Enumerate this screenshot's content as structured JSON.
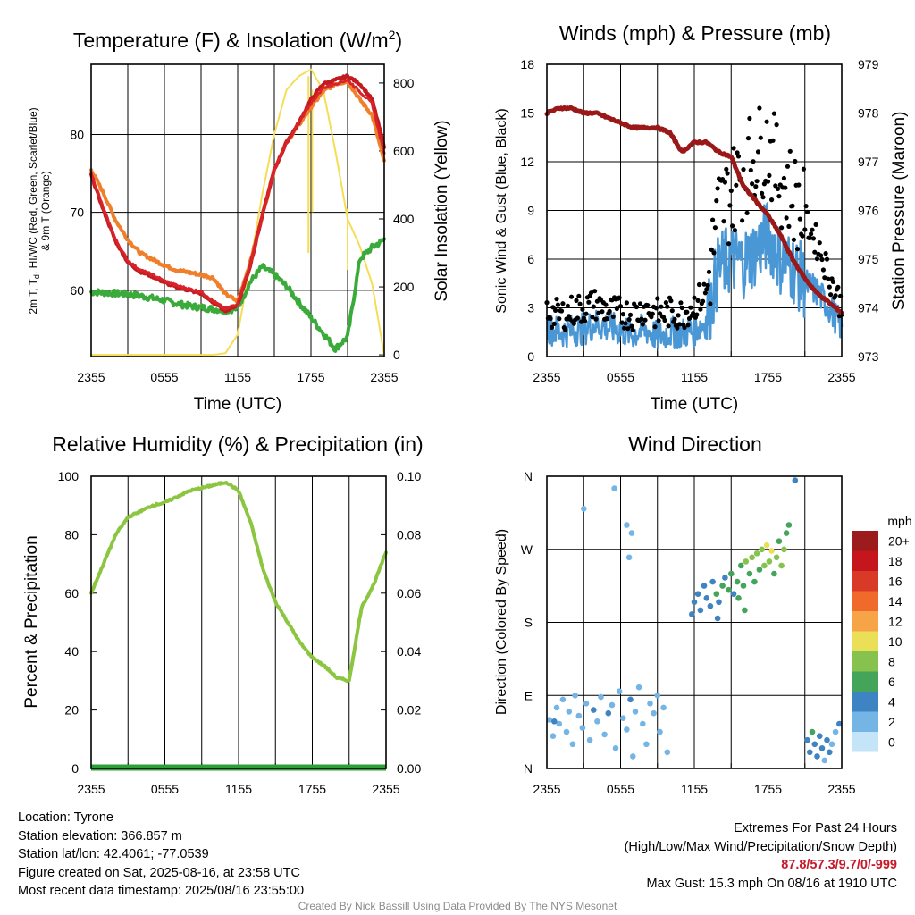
{
  "colors": {
    "temp": "#d9232a",
    "dewpoint": "#3aab3a",
    "hiwc": "#c11b1f",
    "t9m": "#f07f2b",
    "solar": "#f5dd55",
    "rh": "#8cc640",
    "precip": "#2e9e3a",
    "wind": "#4a97d6",
    "gust": "#000000",
    "pressure": "#9b1818"
  },
  "chart_data": [
    {
      "type": "line",
      "title": "Temperature (F) & Insolation (W/m²)",
      "xlabel": "Time (UTC)",
      "ylabel_left": "2m T, Tₐ, HI/WC (Red, Green, Scarlet/Blue) & 9m T (Orange)",
      "ylabel_left_lines": [
        "2m T, T",
        "d",
        ", HI/WC (Red, Green, Scarlet/Blue)",
        "& 9m T (Orange)"
      ],
      "ylabel_right": "Solar Insolation (Yellow)",
      "x_ticks": [
        "2355",
        "0555",
        "1155",
        "1755",
        "2355"
      ],
      "ylim_left": [
        51.5,
        89
      ],
      "yticks_left": [
        60,
        70,
        80
      ],
      "ylim_right": [
        -5,
        855
      ],
      "yticks_right": [
        0,
        200,
        400,
        600,
        800
      ],
      "x_hours": [
        0,
        1,
        2,
        3,
        4,
        5,
        6,
        7,
        8,
        9,
        10,
        11,
        12,
        13,
        14,
        15,
        16,
        17,
        18,
        19,
        20,
        21,
        22,
        23,
        24
      ],
      "series": [
        {
          "name": "2m T",
          "color_key": "temp",
          "axis": "left",
          "values": [
            75.0,
            70.5,
            66.5,
            63.8,
            62.6,
            62.0,
            61.2,
            60.6,
            60.2,
            59.8,
            58.6,
            57.6,
            58.3,
            63.0,
            69.5,
            75.5,
            79.0,
            81.5,
            84.0,
            86.0,
            86.5,
            87.0,
            85.5,
            84.0,
            77.5
          ]
        },
        {
          "name": "HI/WC",
          "color_key": "hiwc",
          "axis": "left",
          "values": [
            74.8,
            70.3,
            66.3,
            63.6,
            62.4,
            61.8,
            61.0,
            60.4,
            60.0,
            59.6,
            58.4,
            57.4,
            58.1,
            63.0,
            69.5,
            75.5,
            79.0,
            81.5,
            84.5,
            86.5,
            87.0,
            87.5,
            86.5,
            84.5,
            78.5
          ]
        },
        {
          "name": "9m T",
          "color_key": "t9m",
          "axis": "left",
          "values": [
            75.5,
            72.5,
            69.0,
            66.5,
            64.8,
            64.0,
            63.2,
            62.6,
            62.3,
            62.0,
            61.6,
            59.5,
            58.6,
            63.5,
            69.5,
            75.5,
            79.0,
            81.2,
            83.5,
            85.5,
            86.5,
            86.8,
            84.5,
            82.5,
            76.5
          ]
        },
        {
          "name": "Dewpoint",
          "color_key": "dewpoint",
          "axis": "left",
          "values": [
            59.8,
            59.7,
            59.6,
            59.5,
            59.3,
            59.0,
            58.7,
            58.3,
            58.0,
            57.8,
            57.6,
            57.4,
            57.7,
            61.0,
            63.0,
            62.0,
            60.5,
            58.5,
            56.5,
            54.5,
            52.5,
            54.0,
            64.0,
            65.5,
            66.5
          ]
        },
        {
          "name": "Solar",
          "color_key": "solar",
          "axis": "right",
          "values": [
            0,
            0,
            0,
            0,
            0,
            0,
            0,
            0,
            0,
            0,
            0,
            5,
            60,
            260,
            470,
            650,
            780,
            820,
            840,
            780,
            600,
            400,
            320,
            210,
            0
          ]
        }
      ]
    },
    {
      "type": "line",
      "title": "Winds (mph) & Pressure (mb)",
      "xlabel": "Time (UTC)",
      "ylabel_left": "Sonic Wind & Gust (Blue, Black)",
      "ylabel_right": "Station Pressure (Maroon)",
      "x_ticks": [
        "2355",
        "0555",
        "1155",
        "1755",
        "2355"
      ],
      "ylim_left": [
        0,
        18
      ],
      "yticks_left": [
        0,
        3,
        6,
        9,
        12,
        15,
        18
      ],
      "ylim_right": [
        973,
        979
      ],
      "yticks_right": [
        973,
        974,
        975,
        976,
        977,
        978,
        979
      ],
      "x_hours": [
        0,
        1,
        2,
        3,
        4,
        5,
        6,
        7,
        8,
        9,
        10,
        11,
        12,
        13,
        14,
        15,
        16,
        17,
        18,
        19,
        20,
        21,
        22,
        23,
        24
      ],
      "series": [
        {
          "name": "Wind",
          "color_key": "wind",
          "axis": "left",
          "values": [
            1.8,
            1.5,
            1.6,
            1.7,
            2.0,
            1.8,
            1.6,
            1.4,
            1.7,
            1.2,
            1.5,
            1.4,
            1.6,
            2.2,
            5.5,
            6.0,
            5.8,
            6.5,
            7.5,
            6.0,
            5.5,
            4.5,
            4.0,
            3.0,
            1.8
          ]
        },
        {
          "name": "Gust",
          "color_key": "gust",
          "axis": "left",
          "values": [
            2.8,
            2.5,
            2.8,
            3.0,
            3.2,
            2.8,
            2.7,
            2.6,
            3.0,
            2.6,
            2.7,
            2.6,
            3.2,
            4.0,
            9.0,
            10.0,
            11.5,
            12.5,
            13.0,
            11.0,
            10.0,
            8.5,
            7.0,
            5.0,
            3.0
          ]
        },
        {
          "name": "Pressure",
          "color_key": "pressure",
          "axis": "right",
          "values": [
            978.0,
            978.1,
            978.1,
            978.0,
            978.0,
            977.9,
            977.8,
            977.7,
            977.7,
            977.7,
            977.6,
            977.2,
            977.4,
            977.4,
            977.2,
            977.1,
            976.5,
            976.2,
            975.9,
            975.5,
            975.0,
            974.6,
            974.3,
            974.1,
            973.9
          ]
        }
      ]
    },
    {
      "type": "line",
      "title": "Relative Humidity (%) & Precipitation (in)",
      "ylabel_left": "Percent & Precipitation",
      "x_ticks": [
        "2355",
        "0555",
        "1155",
        "1755",
        "2355"
      ],
      "ylim_left": [
        0,
        100
      ],
      "yticks_left": [
        0,
        20,
        40,
        60,
        80,
        100
      ],
      "ylim_right": [
        0,
        0.1
      ],
      "yticks_right": [
        "0.00",
        "0.02",
        "0.04",
        "0.06",
        "0.08",
        "0.10"
      ],
      "x_hours": [
        0,
        1,
        2,
        3,
        4,
        5,
        6,
        7,
        8,
        9,
        10,
        11,
        12,
        13,
        14,
        15,
        16,
        17,
        18,
        19,
        20,
        21,
        22,
        23,
        24
      ],
      "series": [
        {
          "name": "RH",
          "color_key": "rh",
          "axis": "left",
          "values": [
            60,
            70,
            80,
            86,
            88,
            90,
            91,
            93,
            95,
            96,
            97,
            98,
            95,
            84,
            68,
            57,
            50,
            43,
            38,
            35,
            31,
            30,
            55,
            63,
            74
          ]
        },
        {
          "name": "Precip",
          "color_key": "precip",
          "axis": "right",
          "values": [
            0,
            0,
            0,
            0,
            0,
            0,
            0,
            0,
            0,
            0,
            0,
            0,
            0,
            0,
            0,
            0,
            0,
            0,
            0,
            0,
            0,
            0,
            0,
            0,
            0
          ]
        }
      ]
    },
    {
      "type": "scatter",
      "title": "Wind Direction",
      "ylabel_left": "Direction (Colored By Speed)",
      "x_ticks": [
        "2355",
        "0555",
        "1155",
        "1755",
        "2355"
      ],
      "y_ticks": [
        "N",
        "E",
        "S",
        "W",
        "N"
      ],
      "ylim": [
        0,
        360
      ],
      "colorbar": {
        "title": "mph",
        "labels": [
          "20+",
          "18",
          "16",
          "14",
          "12",
          "10",
          "8",
          "6",
          "4",
          "2",
          "0"
        ],
        "colors": [
          "#9c1b1d",
          "#c4161c",
          "#d93a27",
          "#ef6a2b",
          "#f7a348",
          "#ecdf58",
          "#86c24d",
          "#44a55a",
          "#3f84c2",
          "#75b5e5",
          "#c3e5f7"
        ]
      },
      "points": [
        [
          0.2,
          60,
          2
        ],
        [
          0.5,
          40,
          1
        ],
        [
          0.8,
          75,
          2
        ],
        [
          1.0,
          55,
          1
        ],
        [
          1.3,
          85,
          2
        ],
        [
          1.6,
          45,
          1
        ],
        [
          1.8,
          70,
          2
        ],
        [
          2.1,
          30,
          1
        ],
        [
          2.3,
          90,
          2
        ],
        [
          2.6,
          65,
          2
        ],
        [
          2.9,
          50,
          1
        ],
        [
          3.2,
          80,
          2
        ],
        [
          3.5,
          35,
          1
        ],
        [
          3.8,
          72,
          3
        ],
        [
          4.1,
          58,
          2
        ],
        [
          4.4,
          88,
          2
        ],
        [
          4.7,
          42,
          1
        ],
        [
          5.0,
          68,
          3
        ],
        [
          5.3,
          78,
          2
        ],
        [
          5.6,
          25,
          1
        ],
        [
          5.9,
          95,
          2
        ],
        [
          6.2,
          62,
          2
        ],
        [
          6.5,
          48,
          1
        ],
        [
          6.8,
          85,
          3
        ],
        [
          7.0,
          15,
          1
        ],
        [
          7.2,
          70,
          2
        ],
        [
          7.5,
          100,
          2
        ],
        [
          7.8,
          55,
          1
        ],
        [
          8.1,
          30,
          2
        ],
        [
          8.4,
          80,
          2
        ],
        [
          8.7,
          68,
          1
        ],
        [
          9.0,
          90,
          2
        ],
        [
          9.2,
          45,
          2
        ],
        [
          9.5,
          75,
          1
        ],
        [
          9.8,
          20,
          2
        ],
        [
          3.0,
          320,
          1
        ],
        [
          5.5,
          345,
          1
        ],
        [
          6.5,
          300,
          1
        ],
        [
          6.7,
          260,
          1
        ],
        [
          6.9,
          290,
          2
        ],
        [
          0.6,
          58,
          3
        ],
        [
          11.8,
          190,
          3
        ],
        [
          12.0,
          205,
          4
        ],
        [
          12.3,
          215,
          3
        ],
        [
          12.5,
          195,
          4
        ],
        [
          12.8,
          225,
          3
        ],
        [
          13.0,
          210,
          4
        ],
        [
          13.3,
          200,
          4
        ],
        [
          13.5,
          230,
          3
        ],
        [
          13.8,
          215,
          5
        ],
        [
          14.0,
          205,
          4
        ],
        [
          14.3,
          225,
          5
        ],
        [
          14.5,
          235,
          4
        ],
        [
          14.8,
          220,
          5
        ],
        [
          15.0,
          240,
          6
        ],
        [
          15.2,
          215,
          4
        ],
        [
          15.5,
          230,
          5
        ],
        [
          15.8,
          250,
          6
        ],
        [
          16.0,
          225,
          5
        ],
        [
          16.2,
          255,
          7
        ],
        [
          16.5,
          240,
          6
        ],
        [
          16.7,
          260,
          7
        ],
        [
          16.9,
          230,
          5
        ],
        [
          17.1,
          265,
          8
        ],
        [
          17.3,
          245,
          6
        ],
        [
          17.5,
          270,
          7
        ],
        [
          17.7,
          250,
          8
        ],
        [
          17.9,
          275,
          9
        ],
        [
          18.1,
          255,
          7
        ],
        [
          18.3,
          268,
          10
        ],
        [
          18.5,
          240,
          6
        ],
        [
          18.7,
          260,
          8
        ],
        [
          18.9,
          280,
          6
        ],
        [
          19.1,
          250,
          7
        ],
        [
          19.3,
          270,
          8
        ],
        [
          19.5,
          290,
          6
        ],
        [
          19.7,
          300,
          5
        ],
        [
          16.1,
          195,
          5
        ],
        [
          15.6,
          210,
          5
        ],
        [
          13.9,
          185,
          4
        ],
        [
          21.2,
          35,
          4
        ],
        [
          21.4,
          20,
          3
        ],
        [
          21.6,
          45,
          5
        ],
        [
          21.8,
          30,
          4
        ],
        [
          22.0,
          15,
          3
        ],
        [
          22.2,
          40,
          4
        ],
        [
          22.4,
          25,
          3
        ],
        [
          22.6,
          10,
          2
        ],
        [
          22.8,
          35,
          3
        ],
        [
          23.0,
          20,
          3
        ],
        [
          23.2,
          30,
          2
        ],
        [
          23.5,
          45,
          2
        ],
        [
          20.2,
          355,
          4
        ],
        [
          23.8,
          55,
          3
        ]
      ]
    }
  ],
  "info": {
    "location": "Location: Tyrone",
    "elevation": "Station elevation: 366.857 m",
    "latlon": "Station lat/lon: 42.4061; -77.0539",
    "created": "Figure created on Sat, 2025-08-16, at 23:58 UTC",
    "recent": "Most recent data timestamp: 2025/08/16 23:55:00"
  },
  "extremes": {
    "title": "Extremes For Past 24 Hours",
    "subtitle": "(High/Low/Max Wind/Precipitation/Snow Depth)",
    "values": "87.8/57.3/9.7/0/-999",
    "gust": "Max Gust: 15.3 mph On 08/16 at 1910 UTC"
  },
  "credit": "Created By Nick Bassill Using Data Provided By The NYS Mesonet"
}
